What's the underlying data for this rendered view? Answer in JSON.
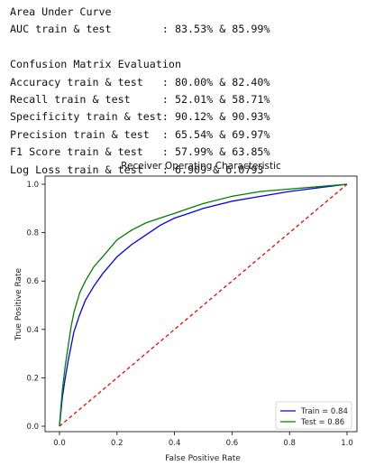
{
  "console": {
    "lines": [
      "Area Under Curve",
      "AUC train & test        : 83.53% & 85.99%",
      "",
      "Confusion Matrix Evaluation",
      "Accuracy train & test   : 80.00% & 82.40%",
      "Recall train & test     : 52.01% & 58.71%",
      "Specificity train & test: 90.12% & 90.93%",
      "Precision train & test  : 65.54% & 69.97%",
      "F1 Score train & test   : 57.99% & 63.85%",
      "Log Loss train & test   : 6.909 & 6.0793"
    ]
  },
  "chart_data": {
    "type": "line",
    "title": "Receiver Operating Characteristic",
    "xlabel": "False Positive Rate",
    "ylabel": "True Positive Rate",
    "xlim": [
      0,
      1
    ],
    "ylim": [
      0,
      1
    ],
    "xticks": [
      "0.0",
      "0.2",
      "0.4",
      "0.6",
      "0.8",
      "1.0"
    ],
    "yticks": [
      "0.0",
      "0.2",
      "0.4",
      "0.6",
      "0.8",
      "1.0"
    ],
    "grid": false,
    "legend": "lower-right",
    "series": [
      {
        "name": "Train = 0.84",
        "color": "#0000ff",
        "style": "solid",
        "x": [
          0,
          0.005,
          0.01,
          0.02,
          0.03,
          0.04,
          0.05,
          0.07,
          0.09,
          0.12,
          0.15,
          0.2,
          0.25,
          0.3,
          0.35,
          0.4,
          0.45,
          0.5,
          0.6,
          0.7,
          0.8,
          0.9,
          1.0
        ],
        "y": [
          0,
          0.06,
          0.12,
          0.2,
          0.27,
          0.33,
          0.39,
          0.46,
          0.52,
          0.58,
          0.63,
          0.7,
          0.75,
          0.79,
          0.83,
          0.86,
          0.88,
          0.9,
          0.93,
          0.95,
          0.97,
          0.985,
          1.0
        ]
      },
      {
        "name": "Test = 0.86",
        "color": "#008000",
        "style": "solid",
        "x": [
          0,
          0.005,
          0.01,
          0.02,
          0.03,
          0.04,
          0.05,
          0.07,
          0.09,
          0.12,
          0.15,
          0.2,
          0.25,
          0.3,
          0.35,
          0.4,
          0.45,
          0.5,
          0.6,
          0.7,
          0.8,
          0.9,
          1.0
        ],
        "y": [
          0,
          0.08,
          0.15,
          0.25,
          0.33,
          0.41,
          0.47,
          0.55,
          0.6,
          0.66,
          0.7,
          0.77,
          0.81,
          0.84,
          0.86,
          0.88,
          0.9,
          0.92,
          0.95,
          0.97,
          0.98,
          0.99,
          1.0
        ]
      },
      {
        "name": "",
        "color": "#ff0000",
        "style": "dashed",
        "x": [
          0,
          1
        ],
        "y": [
          0,
          1
        ]
      }
    ]
  }
}
